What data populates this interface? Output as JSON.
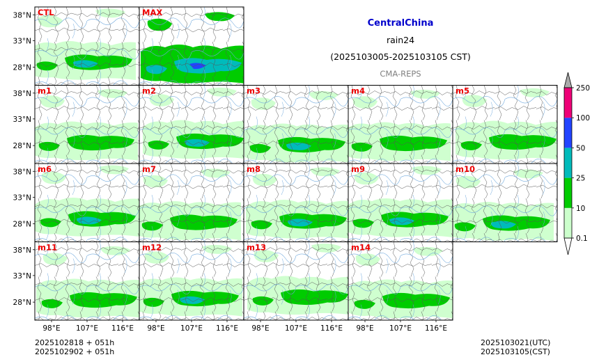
{
  "header": {
    "region": "CentralChina",
    "variable": "rain24",
    "period": "(2025103005-2025103105 CST)",
    "model": "CMA-REPS"
  },
  "footer": {
    "init_utc": "2025102818  +  051h",
    "init_cst": "2025102902  +  051h",
    "valid_utc": "2025103021(UTC)",
    "valid_cst": "2025103105(CST)"
  },
  "colors": {
    "title": "#0000cc",
    "member_label": "#ee0000",
    "model": "#808080",
    "river": "#6fa8dc",
    "boundary": "#555555"
  },
  "chart_data": {
    "type": "heatmap",
    "title": "rain24",
    "panels": [
      {
        "label": "CTL",
        "row": 0,
        "col": 0,
        "intensity": 0.8
      },
      {
        "label": "MAX",
        "row": 0,
        "col": 1,
        "intensity": 1.4
      },
      {
        "label": "m1",
        "row": 1,
        "col": 0,
        "intensity": 0.7
      },
      {
        "label": "m2",
        "row": 1,
        "col": 1,
        "intensity": 0.8
      },
      {
        "label": "m3",
        "row": 1,
        "col": 2,
        "intensity": 0.8
      },
      {
        "label": "m4",
        "row": 1,
        "col": 3,
        "intensity": 0.7
      },
      {
        "label": "m5",
        "row": 1,
        "col": 4,
        "intensity": 0.7
      },
      {
        "label": "m6",
        "row": 2,
        "col": 0,
        "intensity": 0.8
      },
      {
        "label": "m7",
        "row": 2,
        "col": 1,
        "intensity": 0.7
      },
      {
        "label": "m8",
        "row": 2,
        "col": 2,
        "intensity": 0.8
      },
      {
        "label": "m9",
        "row": 2,
        "col": 3,
        "intensity": 0.9
      },
      {
        "label": "m10",
        "row": 2,
        "col": 4,
        "intensity": 0.8
      },
      {
        "label": "m11",
        "row": 3,
        "col": 0,
        "intensity": 0.7
      },
      {
        "label": "m12",
        "row": 3,
        "col": 1,
        "intensity": 0.8
      },
      {
        "label": "m13",
        "row": 3,
        "col": 2,
        "intensity": 0.7
      },
      {
        "label": "m14",
        "row": 3,
        "col": 3,
        "intensity": 0.7
      }
    ],
    "x_ticks": [
      "98°E",
      "107°E",
      "116°E"
    ],
    "y_ticks": [
      "38°N",
      "33°N",
      "28°N"
    ],
    "colorbar": {
      "levels": [
        "0.1",
        "10",
        "25",
        "50",
        "100",
        "250"
      ],
      "colors": [
        "#ccffcc",
        "#00cc00",
        "#00bbbb",
        "#2244ff",
        "#ee0077"
      ],
      "extend_under_color": "#ffffff",
      "extend_over_color": "#aaaaaa"
    }
  }
}
